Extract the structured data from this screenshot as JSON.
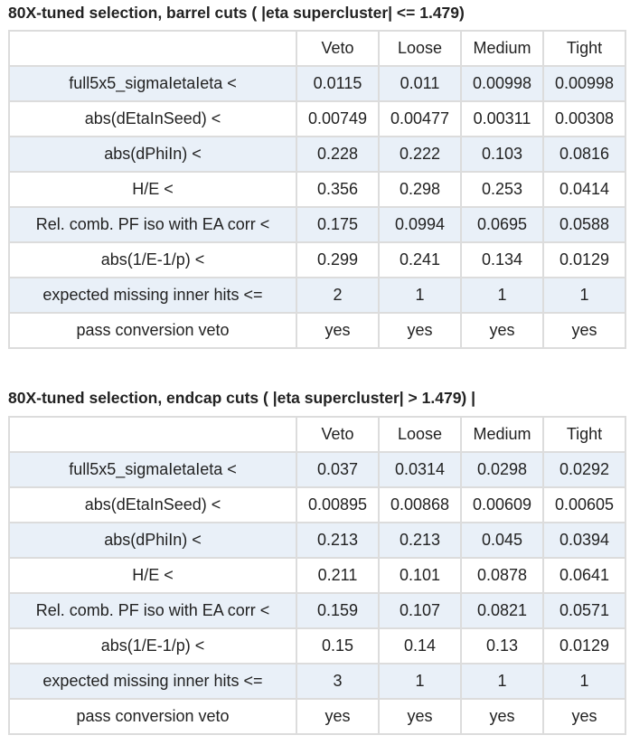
{
  "headers": [
    "",
    "Veto",
    "Loose",
    "Medium",
    "Tight"
  ],
  "barrel": {
    "title": "80X-tuned selection, barrel cuts ( |eta supercluster| <= 1.479)",
    "rows": [
      [
        "full5x5_sigmaIetaIeta <",
        "0.0115",
        "0.011",
        "0.00998",
        "0.00998"
      ],
      [
        "abs(dEtaInSeed) <",
        "0.00749",
        "0.00477",
        "0.00311",
        "0.00308"
      ],
      [
        "abs(dPhiIn) <",
        "0.228",
        "0.222",
        "0.103",
        "0.0816"
      ],
      [
        "H/E <",
        "0.356",
        "0.298",
        "0.253",
        "0.0414"
      ],
      [
        "Rel. comb. PF iso with EA corr <",
        "0.175",
        "0.0994",
        "0.0695",
        "0.0588"
      ],
      [
        "abs(1/E-1/p) <",
        "0.299",
        "0.241",
        "0.134",
        "0.0129"
      ],
      [
        "expected missing inner hits <=",
        "2",
        "1",
        "1",
        "1"
      ],
      [
        "pass conversion veto",
        "yes",
        "yes",
        "yes",
        "yes"
      ]
    ]
  },
  "endcap": {
    "title": "80X-tuned selection, endcap cuts ( |eta supercluster| > 1.479) |",
    "rows": [
      [
        "full5x5_sigmaIetaIeta <",
        "0.037",
        "0.0314",
        "0.0298",
        "0.0292"
      ],
      [
        "abs(dEtaInSeed) <",
        "0.00895",
        "0.00868",
        "0.00609",
        "0.00605"
      ],
      [
        "abs(dPhiIn) <",
        "0.213",
        "0.213",
        "0.045",
        "0.0394"
      ],
      [
        "H/E <",
        "0.211",
        "0.101",
        "0.0878",
        "0.0641"
      ],
      [
        "Rel. comb. PF iso with EA corr <",
        "0.159",
        "0.107",
        "0.0821",
        "0.0571"
      ],
      [
        "abs(1/E-1/p) <",
        "0.15",
        "0.14",
        "0.13",
        "0.0129"
      ],
      [
        "expected missing inner hits <=",
        "3",
        "1",
        "1",
        "1"
      ],
      [
        "pass conversion veto",
        "yes",
        "yes",
        "yes",
        "yes"
      ]
    ]
  },
  "colors": {
    "row_alt": "#e9f0f8",
    "border": "#dcdcdc",
    "text": "#222222"
  }
}
